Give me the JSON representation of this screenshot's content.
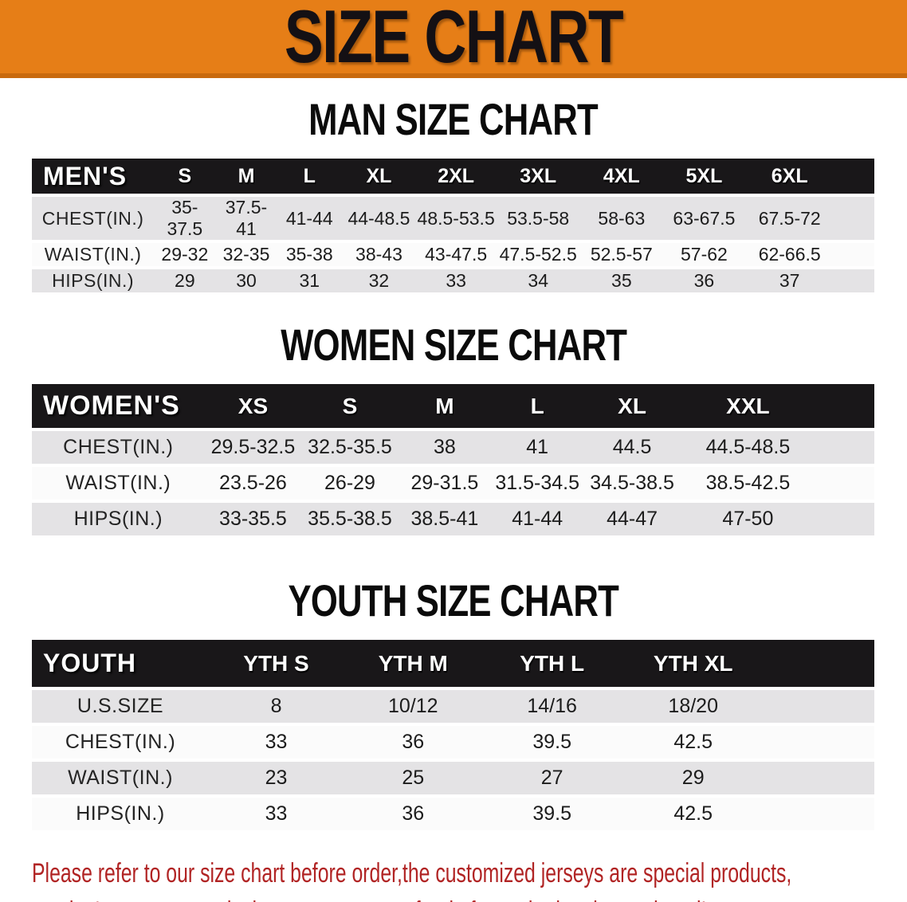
{
  "banner": {
    "title": "SIZE CHART",
    "bg_color": "#e67e17"
  },
  "men": {
    "heading": "MAN SIZE CHART",
    "label": "MEN'S",
    "sizes": [
      "S",
      "M",
      "L",
      "XL",
      "2XL",
      "3XL",
      "4XL",
      "5XL",
      "6XL"
    ],
    "rows": [
      {
        "label": "CHEST(IN.)",
        "values": [
          "35-37.5",
          "37.5-41",
          "41-44",
          "44-48.5",
          "48.5-53.5",
          "53.5-58",
          "58-63",
          "63-67.5",
          "67.5-72"
        ]
      },
      {
        "label": "WAIST(IN.)",
        "values": [
          "29-32",
          "32-35",
          "35-38",
          "38-43",
          "43-47.5",
          "47.5-52.5",
          "52.5-57",
          "57-62",
          "62-66.5"
        ]
      },
      {
        "label": "HIPS(IN.)",
        "values": [
          "29",
          "30",
          "31",
          "32",
          "33",
          "34",
          "35",
          "36",
          "37"
        ]
      }
    ]
  },
  "women": {
    "heading": "WOMEN SIZE CHART",
    "label": "WOMEN'S",
    "sizes": [
      "XS",
      "S",
      "M",
      "L",
      "XL",
      "XXL"
    ],
    "rows": [
      {
        "label": "CHEST(IN.)",
        "values": [
          "29.5-32.5",
          "32.5-35.5",
          "38",
          "41",
          "44.5",
          "44.5-48.5"
        ]
      },
      {
        "label": "WAIST(IN.)",
        "values": [
          "23.5-26",
          "26-29",
          "29-31.5",
          "31.5-34.5",
          "34.5-38.5",
          "38.5-42.5"
        ]
      },
      {
        "label": "HIPS(IN.)",
        "values": [
          "33-35.5",
          "35.5-38.5",
          "38.5-41",
          "41-44",
          "44-47",
          "47-50"
        ]
      }
    ]
  },
  "youth": {
    "heading": "YOUTH SIZE CHART",
    "label": "YOUTH",
    "sizes": [
      "YTH S",
      "YTH M",
      "YTH L",
      "YTH XL"
    ],
    "rows": [
      {
        "label": "U.S.SIZE",
        "values": [
          "8",
          "10/12",
          "14/16",
          "18/20"
        ]
      },
      {
        "label": "CHEST(IN.)",
        "values": [
          "33",
          "36",
          "39.5",
          "42.5"
        ]
      },
      {
        "label": "WAIST(IN.)",
        "values": [
          "23",
          "25",
          "27",
          "29"
        ]
      },
      {
        "label": "HIPS(IN.)",
        "values": [
          "33",
          "36",
          "39.5",
          "42.5"
        ]
      }
    ]
  },
  "disclaimer": {
    "line1": "Please refer to our size chart before order,the customized jerseys are special products,",
    "line2": "we don't accept cancel, change, teturn or refund after order has been placed!",
    "color": "#b12424"
  },
  "colors": {
    "banner_orange": "#e67e17",
    "header_black": "#191719",
    "row_gray": "#e4e3e5",
    "row_white": "#fbfbfb"
  }
}
